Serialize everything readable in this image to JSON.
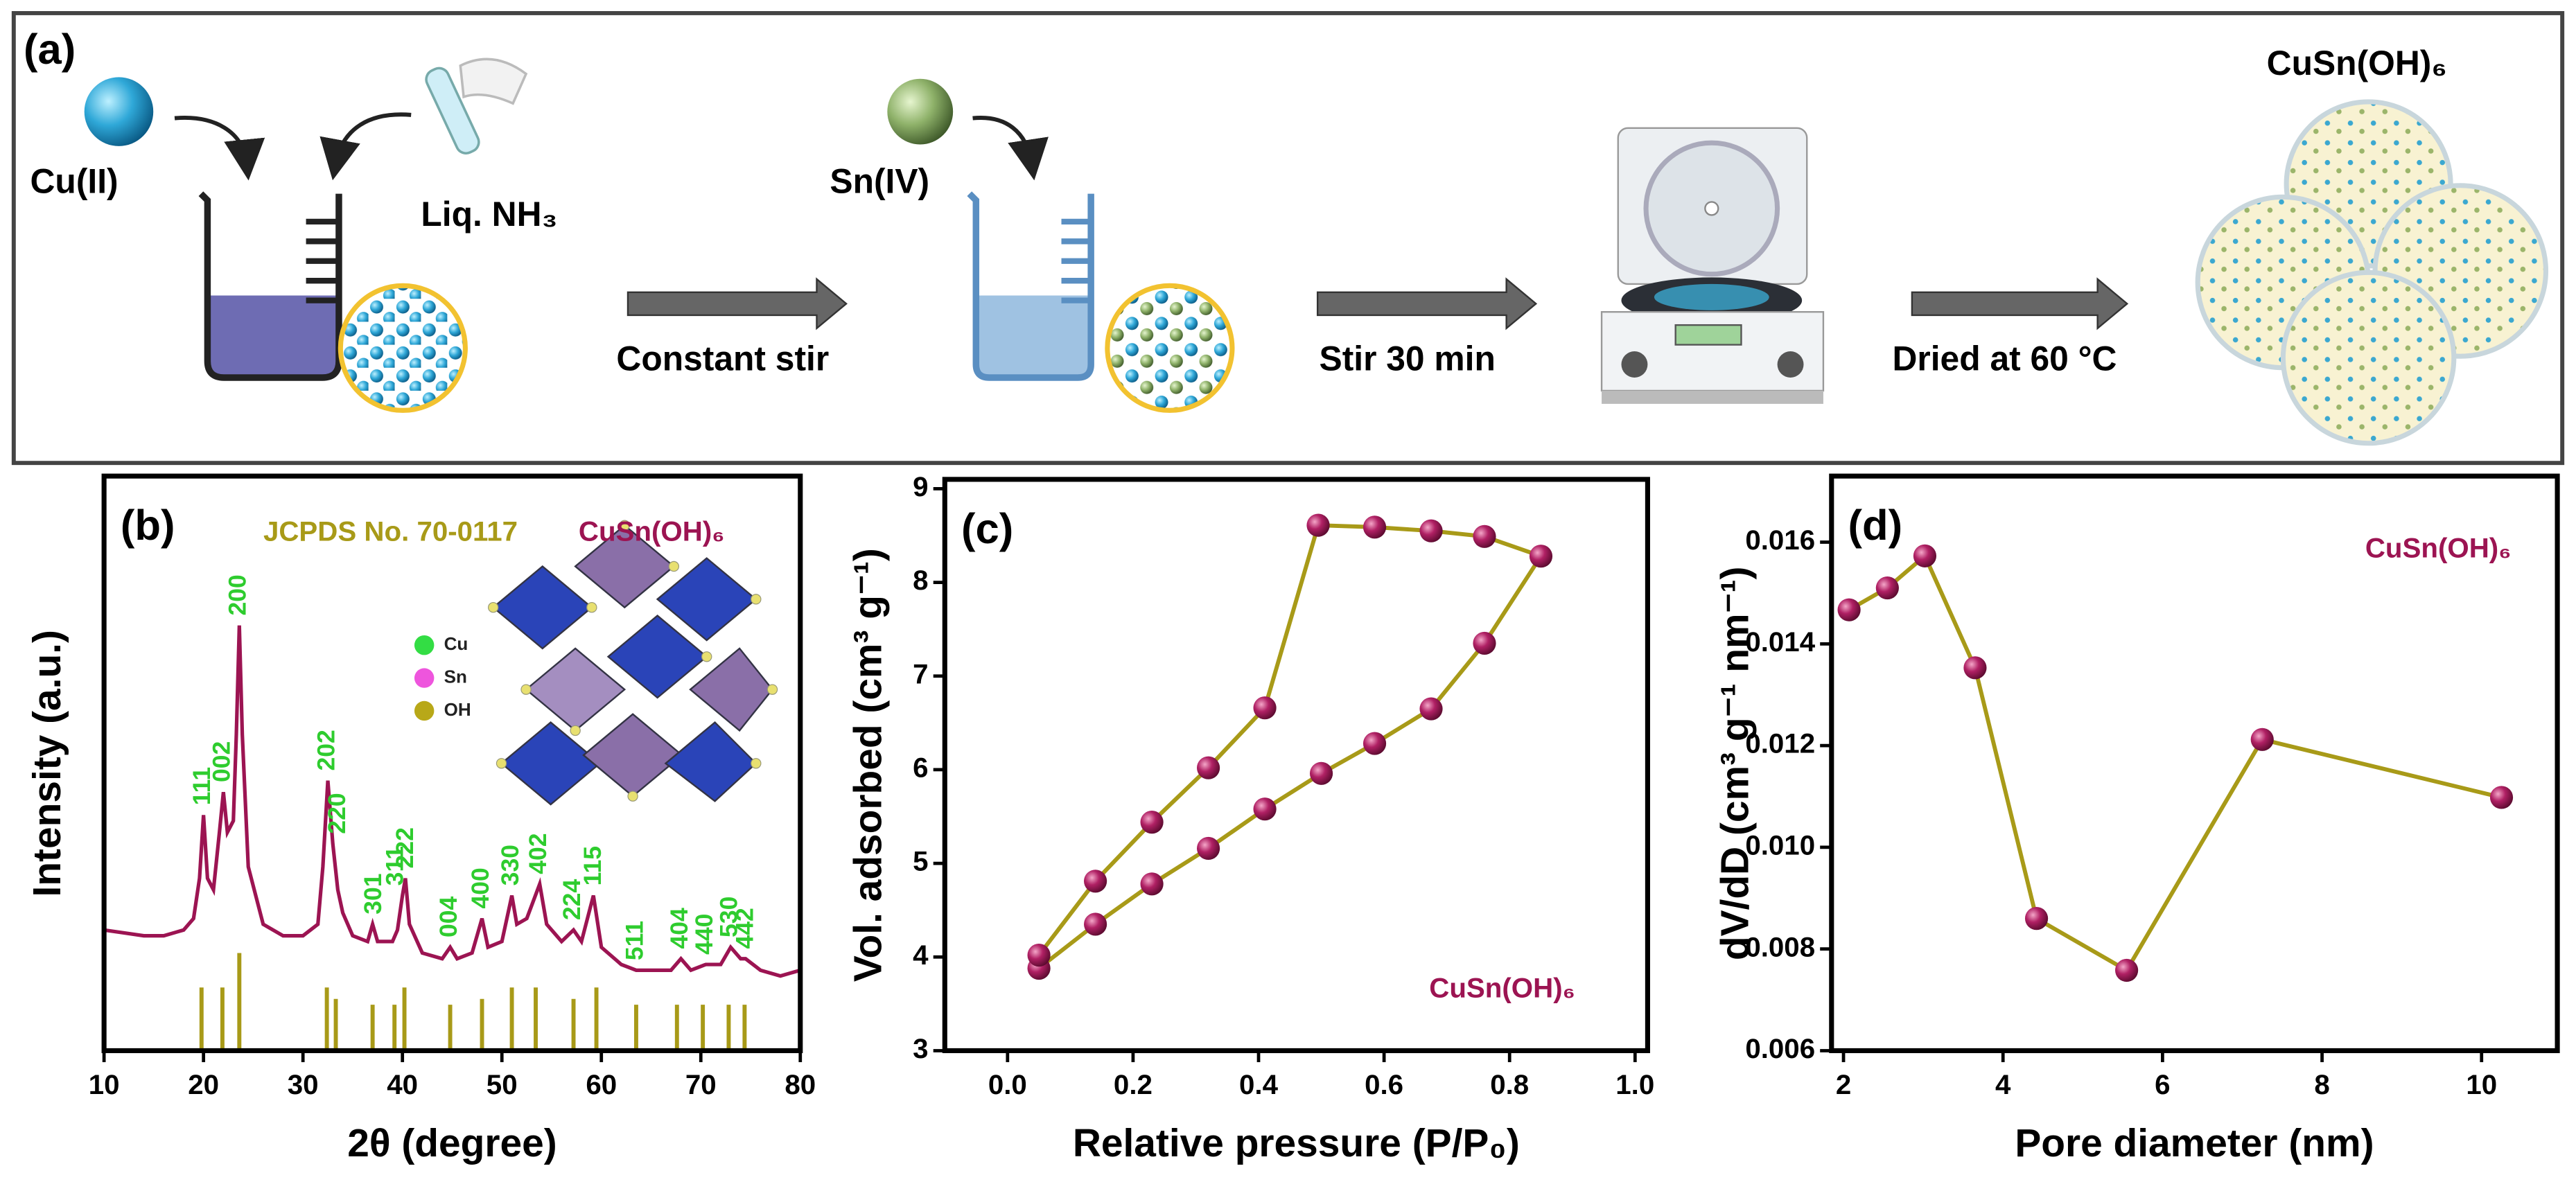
{
  "scheme": {
    "panel_label": "(a)",
    "cu_label": "Cu(II)",
    "nh3_label": "Liq. NH₃",
    "step1": "Constant stir",
    "sn_label": "Sn(IV)",
    "step2": "Stir 30 min",
    "step3": "Dried at 60 °C",
    "product": "CuSn(OH)₆"
  },
  "chart_data": [
    {
      "type": "line",
      "panel_label": "(b)",
      "x_label": "2θ (degree)",
      "y_label": "Intensity (a.u.)",
      "xlim": [
        10,
        80
      ],
      "xticks": [
        10,
        20,
        30,
        40,
        50,
        60,
        70,
        80
      ],
      "ylim": [
        0,
        100
      ],
      "series": [
        {
          "name": "CuSn(OH)₆",
          "color": "#9c1452",
          "x": [
            10,
            12,
            14,
            16,
            18,
            19,
            19.6,
            20,
            20.4,
            21,
            21.6,
            22,
            22.4,
            23,
            23.3,
            23.6,
            23.9,
            24.5,
            26,
            28,
            30,
            31.5,
            32,
            32.5,
            33,
            33.5,
            34,
            35,
            36.5,
            37,
            37.5,
            39,
            39.5,
            40,
            40.3,
            40.7,
            42,
            44,
            44.8,
            45.5,
            47,
            48,
            48.6,
            50,
            51,
            51.5,
            52.5,
            53.8,
            54.5,
            56,
            57.2,
            58,
            59.2,
            60,
            62,
            63.5,
            65,
            67,
            68,
            69,
            70.5,
            72,
            73,
            74,
            74.5,
            76,
            78,
            80
          ],
          "values": [
            21,
            20.5,
            20,
            20,
            21,
            23,
            30,
            41,
            30,
            28,
            38,
            45,
            38,
            40,
            55,
            74,
            55,
            32,
            22,
            20,
            20,
            22,
            32,
            47,
            36,
            28,
            24,
            20,
            19,
            22,
            19,
            19,
            21,
            27,
            30,
            22,
            17,
            16,
            18,
            16,
            17,
            23,
            18,
            19,
            27,
            22,
            23,
            29,
            22,
            19,
            21,
            19,
            27,
            18,
            15,
            14,
            14,
            14,
            16,
            14,
            15,
            15,
            18,
            16,
            16,
            14,
            13,
            14
          ]
        }
      ],
      "reference": {
        "name": "JCPDS No. 70-0117",
        "color": "#a89a18",
        "x": [
          19.8,
          21.9,
          23.6,
          32.4,
          33.3,
          37.0,
          39.2,
          40.2,
          44.8,
          48.0,
          51.0,
          53.4,
          57.2,
          59.5,
          63.5,
          67.6,
          70.2,
          72.8,
          74.4
        ],
        "values": [
          11,
          11,
          17,
          11,
          9,
          8,
          8,
          11,
          8,
          9,
          11,
          11,
          9,
          11,
          8,
          8,
          8,
          8,
          8
        ]
      },
      "annotations": [
        {
          "text": "111",
          "x": 20.0
        },
        {
          "text": "002",
          "x": 22.0
        },
        {
          "text": "200",
          "x": 23.6
        },
        {
          "text": "202",
          "x": 32.5
        },
        {
          "text": "220",
          "x": 33.6
        },
        {
          "text": "301",
          "x": 37.2
        },
        {
          "text": "311",
          "x": 39.4
        },
        {
          "text": "222",
          "x": 40.4
        },
        {
          "text": "004",
          "x": 44.8
        },
        {
          "text": "400",
          "x": 48.0
        },
        {
          "text": "330",
          "x": 51.0
        },
        {
          "text": "402",
          "x": 53.8
        },
        {
          "text": "224",
          "x": 57.2
        },
        {
          "text": "115",
          "x": 59.3
        },
        {
          "text": "511",
          "x": 63.5
        },
        {
          "text": "404",
          "x": 68.0
        },
        {
          "text": "440",
          "x": 70.5
        },
        {
          "text": "530",
          "x": 73.0
        },
        {
          "text": "442",
          "x": 74.6
        }
      ],
      "annotation_color": "#2ecc2e",
      "structure_legend": [
        {
          "name": "Cu",
          "color": "#33dd44"
        },
        {
          "name": "Sn",
          "color": "#ee55dd"
        },
        {
          "name": "OH",
          "color": "#b8a818"
        }
      ]
    },
    {
      "type": "line",
      "panel_label": "(c)",
      "x_label": "Relative pressure (P/P₀)",
      "y_label": "Vol. adsorbed (cm³ g⁻¹)",
      "xlim": [
        -0.1,
        1.02
      ],
      "xticks": [
        {
          "value": 0,
          "label": "0.0"
        },
        0.2,
        0.4,
        0.6,
        0.8,
        {
          "value": 1,
          "label": "1.0"
        }
      ],
      "ylim": [
        3,
        9.1
      ],
      "yticks": [
        3,
        4,
        5,
        6,
        7,
        8,
        9
      ],
      "line_color": "#a89a18",
      "series": [
        {
          "name": "CuSn(OH)₆",
          "color": "#9c1452",
          "x": [
            0.05,
            0.14,
            0.23,
            0.32,
            0.41,
            0.5,
            0.585,
            0.675,
            0.76,
            0.85,
            0.76,
            0.675,
            0.585,
            0.495,
            0.41,
            0.32,
            0.23,
            0.14,
            0.05
          ],
          "values": [
            3.88,
            4.35,
            4.78,
            5.16,
            5.58,
            5.96,
            6.28,
            6.65,
            7.35,
            8.28,
            8.49,
            8.55,
            8.59,
            8.61,
            6.66,
            6.02,
            5.44,
            4.81,
            4.02
          ]
        }
      ]
    },
    {
      "type": "line",
      "panel_label": "(d)",
      "x_label": "Pore diameter (nm)",
      "y_label": "dV/dD (cm³ g⁻¹ nm⁻¹)",
      "xlim": [
        1.85,
        10.95
      ],
      "xticks": [
        2,
        4,
        6,
        8,
        10
      ],
      "ylim": [
        0.006,
        0.0173
      ],
      "yticks": [
        0.006,
        0.008,
        {
          "value": 0.01,
          "label": "0.010"
        },
        0.012,
        0.014,
        0.016
      ],
      "line_color": "#a89a18",
      "series": [
        {
          "name": "CuSn(OH)₆",
          "color": "#9c1452",
          "x": [
            2.07,
            2.55,
            3.02,
            3.65,
            4.42,
            5.55,
            7.25,
            10.25
          ],
          "values": [
            0.01467,
            0.0151,
            0.01573,
            0.01353,
            0.0086,
            0.00758,
            0.01212,
            0.01098
          ]
        }
      ]
    }
  ]
}
